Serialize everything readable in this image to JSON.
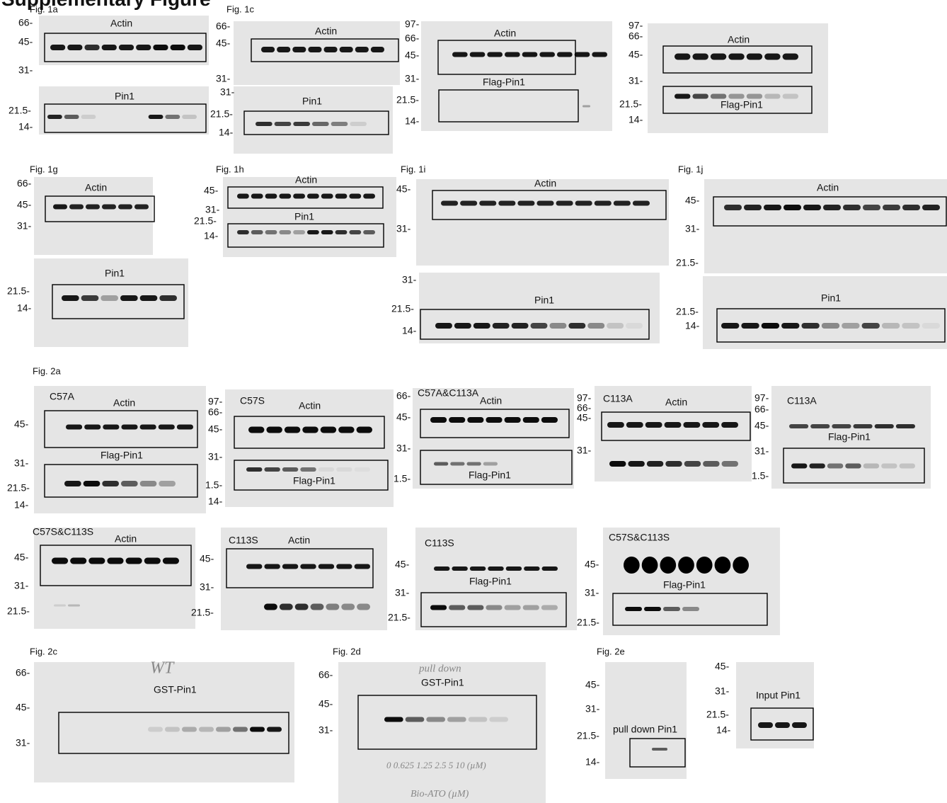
{
  "header": {
    "title": "Supplementary Figure"
  },
  "panels": [
    {
      "label": "Fig. 1a",
      "markers": [
        "66-",
        "45-",
        "31-",
        "21.5-",
        "14-"
      ],
      "proteins": [
        "Actin",
        "Pin1"
      ]
    },
    {
      "label": "Fig. 1c",
      "markers": [
        "66-",
        "45-",
        "31-",
        "31-",
        "21.5-",
        "14-"
      ],
      "proteins": [
        "Actin",
        "Pin1"
      ]
    },
    {
      "markers": [
        "97-",
        "66-",
        "45-",
        "31-",
        "21.5-",
        "14-"
      ],
      "proteins": [
        "Actin",
        "Flag-Pin1"
      ]
    },
    {
      "markers": [
        "97-",
        "66-",
        "45-",
        "31-",
        "21.5-",
        "14-"
      ],
      "proteins": [
        "Actin",
        "Flag-Pin1"
      ]
    },
    {
      "label": "Fig. 1g",
      "markers": [
        "66-",
        "45-",
        "31-",
        "21.5-",
        "14-"
      ],
      "proteins": [
        "Actin",
        "Pin1"
      ]
    },
    {
      "label": "Fig. 1h",
      "markers": [
        "45-",
        "31-",
        "21.5-",
        "14-"
      ],
      "proteins": [
        "Actin",
        "Pin1"
      ]
    },
    {
      "label": "Fig. 1i",
      "markers": [
        "45-",
        "31-",
        "31-",
        "21.5-",
        "14-"
      ],
      "proteins": [
        "Actin",
        "Pin1"
      ]
    },
    {
      "label": "Fig. 1j",
      "markers": [
        "45-",
        "31-",
        "21.5-",
        "21.5-",
        "14-"
      ],
      "proteins": [
        "Actin",
        "Pin1"
      ]
    },
    {
      "label": "Fig. 2a",
      "sample": "C57A",
      "markers": [
        "45-",
        "31-",
        "21.5-",
        "14-"
      ],
      "proteins": [
        "Actin",
        "Flag-Pin1"
      ]
    },
    {
      "sample": "C57S",
      "markers": [
        "97-",
        "66-",
        "45-",
        "31-",
        "1.5-",
        "14-"
      ],
      "proteins": [
        "Actin",
        "Flag-Pin1"
      ]
    },
    {
      "sample": "C57A&C113A",
      "markers": [
        "66-",
        "45-",
        "31-",
        "1.5-"
      ],
      "proteins": [
        "Actin",
        "Flag-Pin1"
      ]
    },
    {
      "sample": "C113A",
      "markers": [
        "97-",
        "66-",
        "45-",
        "31-"
      ],
      "proteins": [
        "Actin"
      ]
    },
    {
      "sample": "C113A",
      "markers": [
        "97-",
        "66-",
        "45-",
        "31-",
        "1.5-"
      ],
      "proteins": [
        "Flag-Pin1"
      ]
    },
    {
      "sample": "C57S&C113S",
      "markers": [
        "45-",
        "31-",
        "21.5-"
      ],
      "proteins": [
        "Actin"
      ]
    },
    {
      "sample": "C113S",
      "markers": [
        "45-",
        "31-",
        "21.5-"
      ],
      "proteins": [
        "Actin"
      ]
    },
    {
      "sample": "C113S",
      "markers": [
        "45-",
        "31-",
        "21.5-"
      ],
      "proteins": [
        "Flag-Pin1"
      ]
    },
    {
      "sample": "C57S&C113S",
      "markers": [
        "45-",
        "31-",
        "21.5-"
      ],
      "proteins": [
        "Flag-Pin1"
      ]
    },
    {
      "label": "Fig. 2c",
      "markers": [
        "66-",
        "45-",
        "31-"
      ],
      "proteins": [
        "GST-Pin1"
      ],
      "notes": [
        "WT"
      ]
    },
    {
      "label": "Fig. 2d",
      "markers": [
        "66-",
        "45-",
        "31-"
      ],
      "proteins": [
        "GST-Pin1"
      ],
      "notes": [
        "pull down",
        "0 0.625 1.25 2.5 5 10 (µM)",
        "Bio-ATO (µM)"
      ]
    },
    {
      "label": "Fig. 2e",
      "markers": [
        "45-",
        "31-",
        "21.5-",
        "14-",
        "45-",
        "31-",
        "21.5-",
        "14-"
      ],
      "proteins": [
        "pull down Pin1",
        "Input Pin1"
      ]
    }
  ]
}
